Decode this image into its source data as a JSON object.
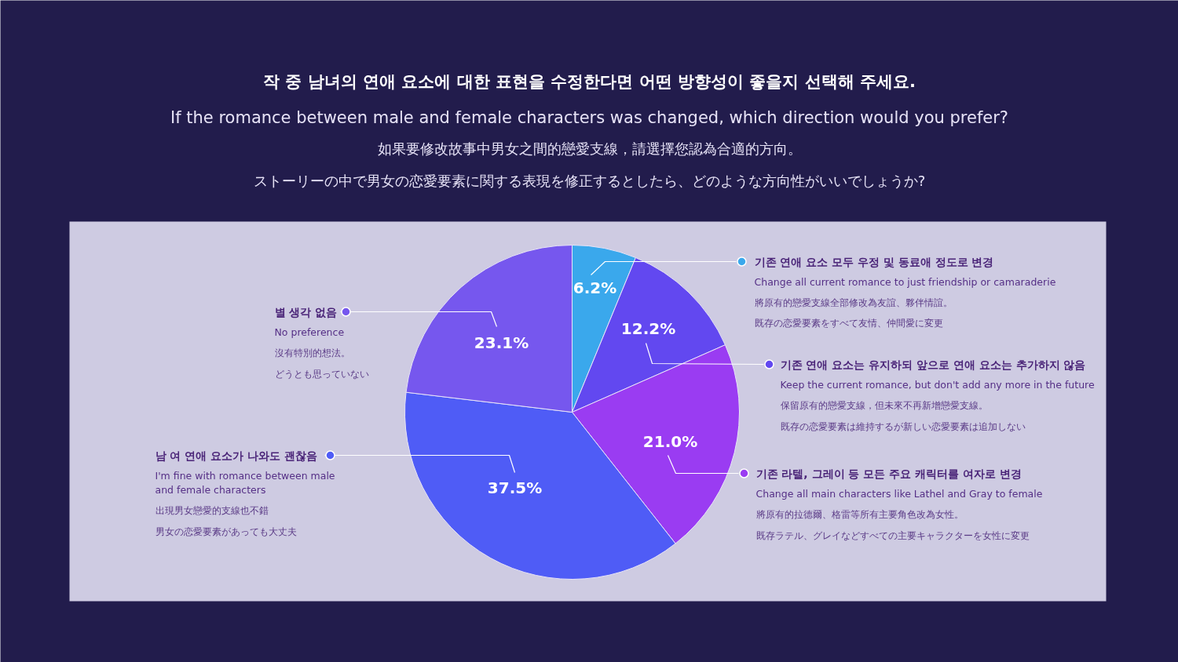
{
  "chart_data": {
    "type": "pie",
    "title": "작 중 남녀의 연애 요소에 대한 표현을 수정한다면 어떤 방향성이 좋을지 선택해 주세요.",
    "subtitle": "If the romance between male and female characters was changed, which direction would you prefer?",
    "annotations": [
      "如果要修改故事中男女之間的戀愛支線，請選擇您認為合適的方向。",
      "ストーリーの中で男女の恋愛要素に関する表現を修正するとしたら、どのような方向性がいいでしょうか?",
      "將原有的戀愛支線全部修改為友誼、夥伴情誼。",
      "既存の恋愛要素をすべて友情、仲間愛に変更",
      "保留原有的戀愛支線，但未來不再新增戀愛支線。",
      "既存の恋愛要素は維持するが新しい恋愛要素は追加しない",
      "將原有的拉德爾、格雷等所有主要角色改為女性。",
      "既存ラテル、グレイなどすべての主要キャラクターを女性に変更",
      "出現男女戀愛的支線也不錯",
      "男女の恋愛要素があっても大丈夫",
      "沒有特別的想法。",
      "どうとも思っていない"
    ],
    "categories": [
      "기존 연애 요소 모두 우정 및 동료애 정도로 변경\nChange all current romance to just friendship or camaraderie",
      "기존 연애 요소는 유지하되 앞으로 연애 요소는 추가하지 않음\nKeep the current romance, but don't add any more in the future",
      "기존 라텔, 그레이 등 모든 주요 캐릭터를 여자로 변경\nChange all main characters like Lathel and Gray to female",
      "남 여 연애 요소가 나와도 괜찮음\nI'm fine with romance between male\nand female characters",
      "별 생각 없음\nNo preference"
    ],
    "values": [
      6.2,
      12.2,
      21.0,
      37.5,
      23.1
    ],
    "colors": [
      "#3aa8ec",
      "#6248f0",
      "#9a3cf2",
      "#4f5cf6",
      "#7657ee"
    ],
    "value_labels": [
      "6.2%",
      "12.2%",
      "21.0%",
      "37.5%",
      "23.1%"
    ],
    "legend": "right"
  }
}
